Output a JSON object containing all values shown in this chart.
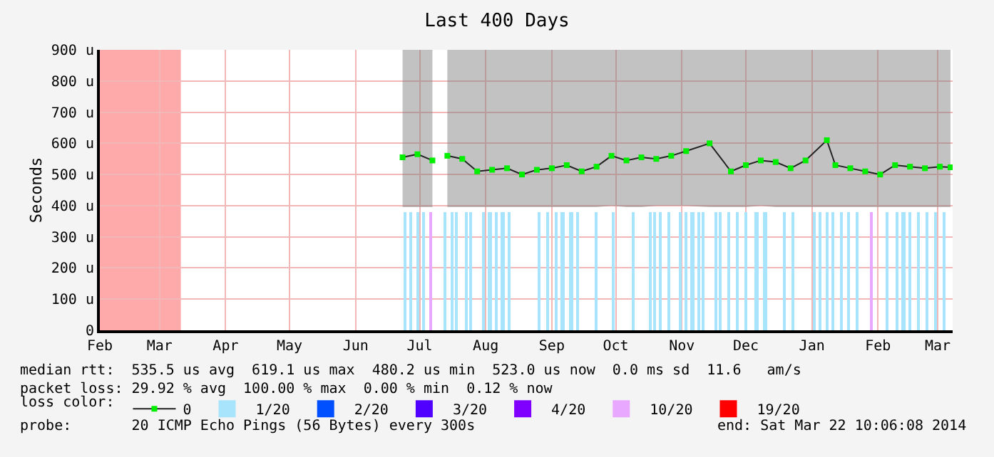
{
  "chart_data": {
    "type": "line",
    "title": "Last 400 Days",
    "ylabel": "Seconds",
    "legend_title": "loss color:",
    "xlim": [
      "2013-02-15",
      "2014-03-22"
    ],
    "xticks": [
      {
        "value": "2013-02-15",
        "label": "Feb"
      },
      {
        "value": "2013-03-15",
        "label": "Mar"
      },
      {
        "value": "2013-04-15",
        "label": "Apr"
      },
      {
        "value": "2013-05-15",
        "label": "May"
      },
      {
        "value": "2013-06-15",
        "label": "Jun"
      },
      {
        "value": "2013-07-15",
        "label": "Jul"
      },
      {
        "value": "2013-08-15",
        "label": "Aug"
      },
      {
        "value": "2013-09-15",
        "label": "Sep"
      },
      {
        "value": "2013-10-15",
        "label": "Oct"
      },
      {
        "value": "2013-11-15",
        "label": "Nov"
      },
      {
        "value": "2013-12-15",
        "label": "Dec"
      },
      {
        "value": "2014-01-15",
        "label": "Jan"
      },
      {
        "value": "2014-02-15",
        "label": "Feb"
      },
      {
        "value": "2014-03-15",
        "label": "Mar"
      }
    ],
    "ylim": [
      0,
      900
    ],
    "yticks": [
      0,
      {
        "value": 100,
        "label": "100 u"
      },
      {
        "value": 200,
        "label": "200 u"
      },
      {
        "value": 300,
        "label": "300 u"
      },
      {
        "value": 400,
        "label": "400 u"
      },
      {
        "value": 500,
        "label": "500 u"
      },
      {
        "value": 600,
        "label": "600 u"
      },
      {
        "value": 700,
        "label": "700 u"
      },
      {
        "value": 800,
        "label": "800 u"
      },
      {
        "value": 900,
        "label": "900 u"
      }
    ],
    "grid": true,
    "legend": "bottom",
    "series": [
      {
        "name": "0",
        "color": "#00ee00",
        "marker": "square",
        "x": [
          "2013-07-07",
          "2013-07-14",
          "2013-07-21",
          "2013-07-24",
          "2013-07-28",
          "2013-08-04",
          "2013-08-11",
          "2013-08-18",
          "2013-08-25",
          "2013-09-01",
          "2013-09-08",
          "2013-09-15",
          "2013-09-22",
          "2013-09-29",
          "2013-10-06",
          "2013-10-13",
          "2013-10-20",
          "2013-10-27",
          "2013-11-03",
          "2013-11-10",
          "2013-11-17",
          "2013-11-28",
          "2013-12-08",
          "2013-12-15",
          "2013-12-22",
          "2013-12-29",
          "2014-01-05",
          "2014-01-12",
          "2014-01-22",
          "2014-01-26",
          "2014-02-02",
          "2014-02-09",
          "2014-02-16",
          "2014-02-23",
          "2014-03-02",
          "2014-03-09",
          "2014-03-16",
          "2014-03-21"
        ],
        "values": [
          555,
          565,
          545,
          null,
          560,
          550,
          510,
          515,
          520,
          500,
          515,
          520,
          530,
          510,
          525,
          560,
          545,
          555,
          550,
          560,
          575,
          600,
          510,
          530,
          545,
          540,
          520,
          545,
          610,
          530,
          520,
          510,
          500,
          530,
          525,
          520,
          525,
          523
        ],
        "lower": [
          395,
          395,
          395,
          null,
          395,
          395,
          395,
          395,
          395,
          395,
          395,
          395,
          395,
          395,
          395,
          400,
          395,
          395,
          400,
          400,
          400,
          395,
          395,
          395,
          400,
          395,
          395,
          395,
          395,
          395,
          395,
          395,
          395,
          395,
          395,
          395,
          395,
          395
        ],
        "upper": [
          900,
          900,
          900,
          null,
          900,
          900,
          900,
          900,
          900,
          900,
          900,
          900,
          900,
          900,
          900,
          900,
          900,
          900,
          900,
          900,
          900,
          900,
          900,
          900,
          900,
          900,
          900,
          900,
          900,
          900,
          900,
          900,
          900,
          900,
          900,
          900,
          900,
          900
        ]
      },
      {
        "name": "1/20",
        "type": "bar",
        "color": "#a8e4fc",
        "x": [
          "2013-07-08",
          "2013-07-11",
          "2013-07-14",
          "2013-07-17",
          "2013-07-27",
          "2013-07-30",
          "2013-08-01",
          "2013-08-06",
          "2013-08-08",
          "2013-08-14",
          "2013-08-17",
          "2013-08-20",
          "2013-08-23",
          "2013-08-26",
          "2013-09-09",
          "2013-09-13",
          "2013-09-17",
          "2013-09-20",
          "2013-09-24",
          "2013-09-27",
          "2013-10-06",
          "2013-10-14",
          "2013-10-23",
          "2013-10-31",
          "2013-11-02",
          "2013-11-05",
          "2013-11-09",
          "2013-11-14",
          "2013-11-17",
          "2013-11-20",
          "2013-11-23",
          "2013-11-25",
          "2013-12-01",
          "2013-12-03",
          "2013-12-07",
          "2013-12-11",
          "2013-12-15",
          "2013-12-20",
          "2013-12-24",
          "2014-01-02",
          "2014-01-06",
          "2014-01-16",
          "2014-01-19",
          "2014-01-22",
          "2014-01-25",
          "2014-01-29",
          "2014-02-01",
          "2014-02-05",
          "2014-02-19",
          "2014-02-24",
          "2014-02-27",
          "2014-03-02",
          "2014-03-06",
          "2014-03-10",
          "2014-03-14",
          "2014-03-18"
        ],
        "values": [
          380,
          380,
          380,
          380,
          380,
          380,
          380,
          380,
          380,
          380,
          380,
          380,
          380,
          380,
          380,
          380,
          380,
          380,
          380,
          380,
          380,
          380,
          380,
          380,
          380,
          380,
          380,
          380,
          380,
          380,
          380,
          380,
          380,
          380,
          380,
          380,
          380,
          380,
          380,
          380,
          380,
          380,
          380,
          380,
          380,
          380,
          380,
          380,
          380,
          380,
          380,
          380,
          380,
          380,
          380,
          380
        ]
      },
      {
        "name": "2/20",
        "type": "bar",
        "color": "#0050ff"
      },
      {
        "name": "3/20",
        "type": "bar",
        "color": "#5000ff"
      },
      {
        "name": "4/20",
        "type": "bar",
        "color": "#8000ff"
      },
      {
        "name": "10/20",
        "type": "bar",
        "color": "#e8a8ff",
        "x": [
          "2013-07-20",
          "2014-02-12"
        ],
        "values": [
          380,
          380
        ]
      },
      {
        "name": "19/20",
        "type": "bar",
        "color": "#ff0000"
      }
    ],
    "bands": [
      {
        "axis": "x",
        "from": "2013-02-15",
        "to": "2013-03-25",
        "color": "#ffaaaa"
      }
    ],
    "annotations": [
      "median rtt:  535.5 us avg  619.1 us max  480.2 us min  523.0 us now  0.0 ms sd  11.6   am/s",
      "packet loss: 29.92 % avg  100.00 % max  0.00 % min  0.12 % now",
      "probe:       20 ICMP Echo Pings (56 Bytes) every 300s",
      "end: Sat Mar 22 10:06:08 2014"
    ]
  }
}
